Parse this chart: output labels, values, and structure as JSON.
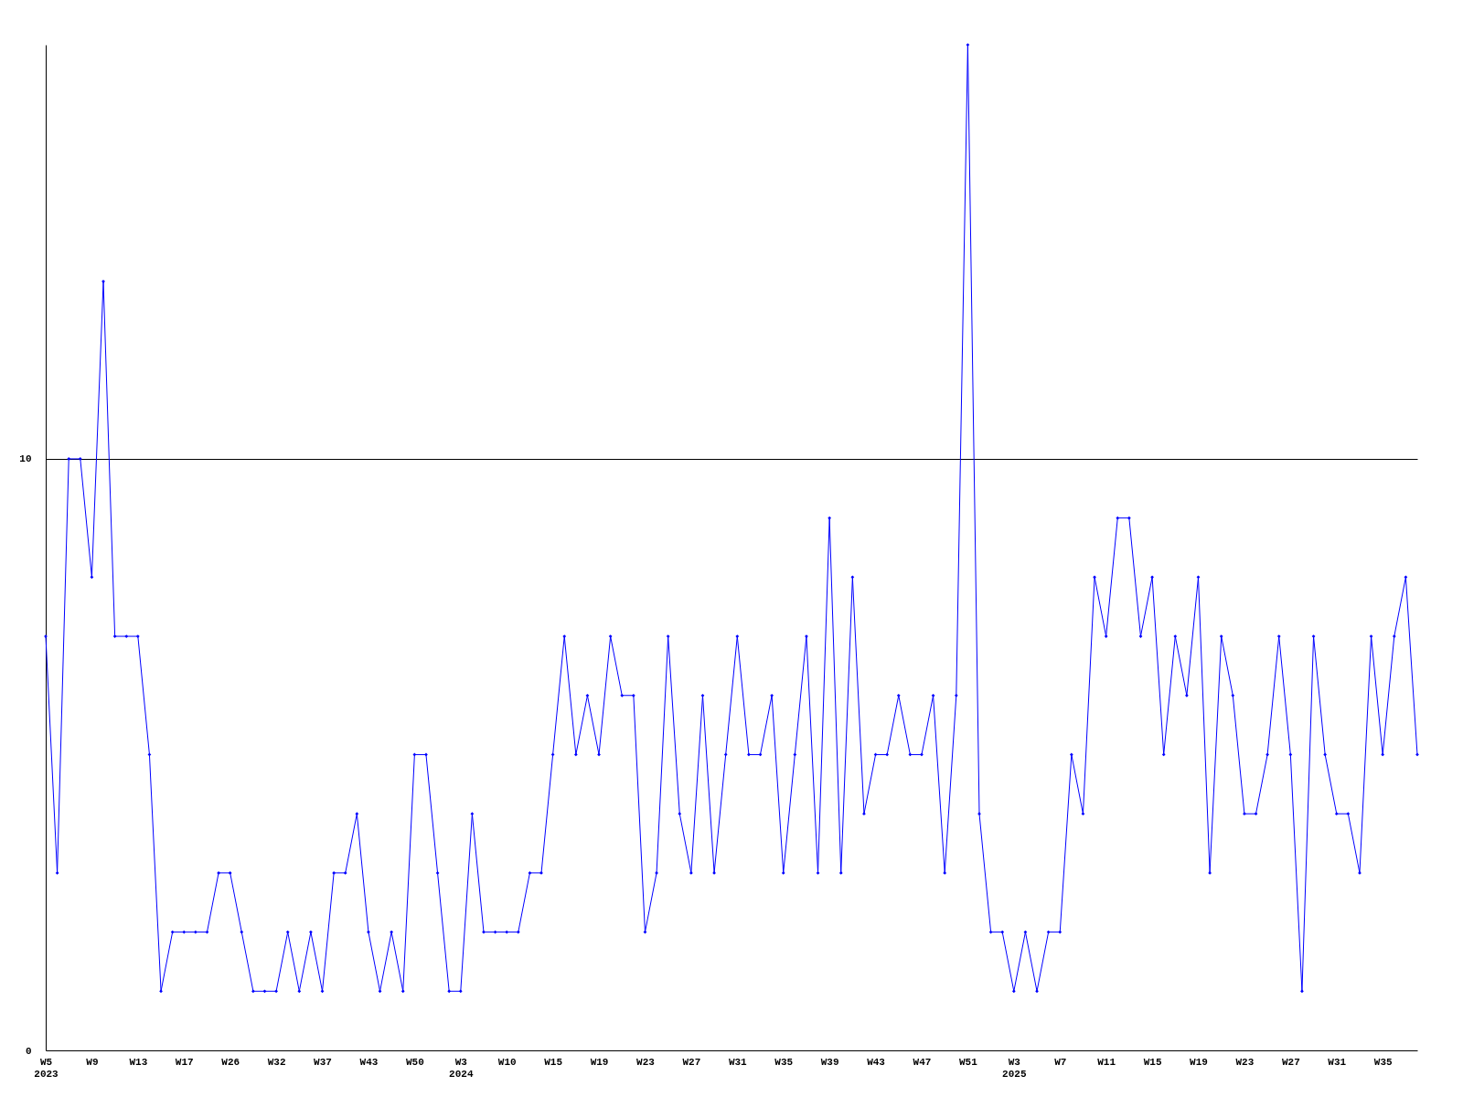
{
  "chart_data": {
    "type": "line",
    "categories": [
      "W5\n2023",
      null,
      null,
      null,
      "W9",
      null,
      null,
      null,
      "W13",
      null,
      null,
      null,
      "W17",
      null,
      null,
      null,
      "W26",
      null,
      null,
      null,
      "W32",
      null,
      null,
      null,
      "W37",
      null,
      null,
      null,
      "W43",
      null,
      null,
      null,
      "W50",
      null,
      null,
      null,
      "W3\n2024",
      null,
      null,
      null,
      "W10",
      null,
      null,
      null,
      "W15",
      null,
      null,
      null,
      "W19",
      null,
      null,
      null,
      "W23",
      null,
      null,
      null,
      "W27",
      null,
      null,
      null,
      "W31",
      null,
      null,
      null,
      "W35",
      null,
      null,
      null,
      "W39",
      null,
      null,
      null,
      "W43",
      null,
      null,
      null,
      "W47",
      null,
      null,
      null,
      "W51",
      null,
      null,
      null,
      "W3\n2025",
      null,
      null,
      null,
      "W7",
      null,
      null,
      null,
      "W11",
      null,
      null,
      null,
      "W15",
      null,
      null,
      null,
      "W19",
      null,
      null,
      null,
      "W23",
      null,
      null,
      null,
      "W27",
      null,
      null,
      null,
      "W31",
      null,
      null,
      null,
      "W35",
      null,
      null,
      null
    ],
    "series": [
      {
        "color": "#0000ff",
        "values": [
          7,
          3,
          10,
          10,
          8,
          13,
          7,
          7,
          7,
          5,
          1,
          2,
          2,
          2,
          2,
          3,
          3,
          2,
          1,
          1,
          1,
          2,
          1,
          2,
          1,
          3,
          3,
          4,
          2,
          1,
          2,
          1,
          5,
          5,
          3,
          1,
          1,
          4,
          2,
          2,
          2,
          2,
          3,
          3,
          5,
          7,
          5,
          6,
          5,
          7,
          6,
          6,
          2,
          3,
          7,
          4,
          3,
          6,
          3,
          5,
          7,
          5,
          5,
          6,
          3,
          5,
          7,
          3,
          9,
          3,
          8,
          4,
          5,
          5,
          6,
          5,
          5,
          6,
          3,
          6,
          17,
          4,
          2,
          2,
          1,
          2,
          1,
          2,
          2,
          5,
          4,
          8,
          7,
          9,
          9,
          7,
          8,
          5,
          7,
          6,
          8,
          3,
          7,
          6,
          4,
          4,
          5,
          7,
          5,
          1,
          7,
          5,
          4,
          4,
          3,
          7,
          5,
          7,
          8,
          5
        ]
      }
    ],
    "ylim": [
      0,
      17
    ],
    "yticks": [
      0,
      10
    ],
    "grid": "y",
    "marker": "diamond",
    "line_style": "solid",
    "legend": false
  }
}
